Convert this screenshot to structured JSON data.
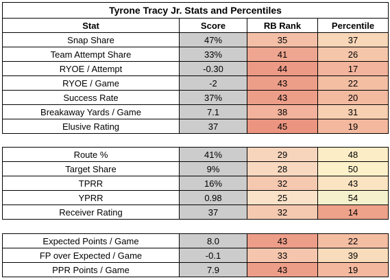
{
  "title": "Tyrone Tracy Jr. Stats and Percentiles",
  "headers": [
    "Stat",
    "Score",
    "RB Rank",
    "Percentile"
  ],
  "sections": [
    {
      "rows": [
        {
          "stat": "Snap Share",
          "score": "47%",
          "rank": "35",
          "pct": "37",
          "rank_color": "#f4bfa7",
          "pct_color": "#f8d6b8"
        },
        {
          "stat": "Team Attempt Share",
          "score": "33%",
          "rank": "41",
          "pct": "26",
          "rank_color": "#efa690",
          "pct_color": "#f5c6aa"
        },
        {
          "stat": "RYOE / Attempt",
          "score": "-0.30",
          "rank": "44",
          "pct": "17",
          "rank_color": "#ec9a85",
          "pct_color": "#f2b49c"
        },
        {
          "stat": "RYOE / Game",
          "score": "-2",
          "rank": "43",
          "pct": "22",
          "rank_color": "#ed9e89",
          "pct_color": "#f4bea3"
        },
        {
          "stat": "Success Rate",
          "score": "37%",
          "rank": "43",
          "pct": "20",
          "rank_color": "#ed9e89",
          "pct_color": "#f3baa0"
        },
        {
          "stat": "Breakaway Yards / Game",
          "score": "7.1",
          "rank": "38",
          "pct": "31",
          "rank_color": "#f2b29b",
          "pct_color": "#f7cfb1"
        },
        {
          "stat": "Elusive Rating",
          "score": "37",
          "rank": "45",
          "pct": "19",
          "rank_color": "#eb9580",
          "pct_color": "#f3b89e"
        }
      ]
    },
    {
      "rows": [
        {
          "stat": "Route %",
          "score": "41%",
          "rank": "29",
          "pct": "48",
          "rank_color": "#f7d5bd",
          "pct_color": "#fdedc6"
        },
        {
          "stat": "Target Share",
          "score": "9%",
          "rank": "28",
          "pct": "50",
          "rank_color": "#f8d9c0",
          "pct_color": "#fdf1c9"
        },
        {
          "stat": "TPRR",
          "score": "16%",
          "rank": "32",
          "pct": "43",
          "rank_color": "#f5c9b0",
          "pct_color": "#fbe4c1"
        },
        {
          "stat": "YPRR",
          "score": "0.98",
          "rank": "25",
          "pct": "54",
          "rank_color": "#fae2c8",
          "pct_color": "#f5f1cd"
        },
        {
          "stat": "Receiver Rating",
          "score": "37",
          "rank": "32",
          "pct": "14",
          "rank_color": "#f5c9b0",
          "pct_color": "#eea28a"
        }
      ]
    },
    {
      "rows": [
        {
          "stat": "Expected Points / Game",
          "score": "8.0",
          "rank": "43",
          "pct": "22",
          "rank_color": "#ed9e89",
          "pct_color": "#f4bea3"
        },
        {
          "stat": "FP over Expected / Game",
          "score": "-0.1",
          "rank": "33",
          "pct": "39",
          "rank_color": "#f5c6ad",
          "pct_color": "#f9dcbb"
        },
        {
          "stat": "PPR Points / Game",
          "score": "7.9",
          "rank": "43",
          "pct": "19",
          "rank_color": "#ed9e89",
          "pct_color": "#f3b89e"
        }
      ]
    }
  ]
}
